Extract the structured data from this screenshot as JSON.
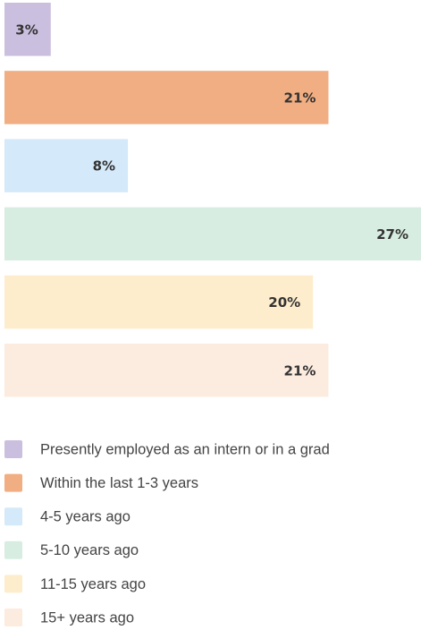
{
  "chart_data": {
    "type": "bar",
    "orientation": "horizontal",
    "categories": [
      "Presently employed as an intern or in a grad",
      "Within the last 1-3 years",
      "4-5 years ago",
      "5-10 years ago",
      "11-15 years ago",
      "15+ years ago"
    ],
    "values": [
      3,
      21,
      8,
      27,
      20,
      21
    ],
    "value_labels": [
      "3%",
      "21%",
      "8%",
      "27%",
      "20%",
      "21%"
    ],
    "colors": [
      "#cbbfdf",
      "#f1ae82",
      "#d4e9f9",
      "#d8ede1",
      "#fdedcc",
      "#fcebdf"
    ],
    "xlim": [
      0,
      27
    ],
    "legend": "bottom"
  }
}
